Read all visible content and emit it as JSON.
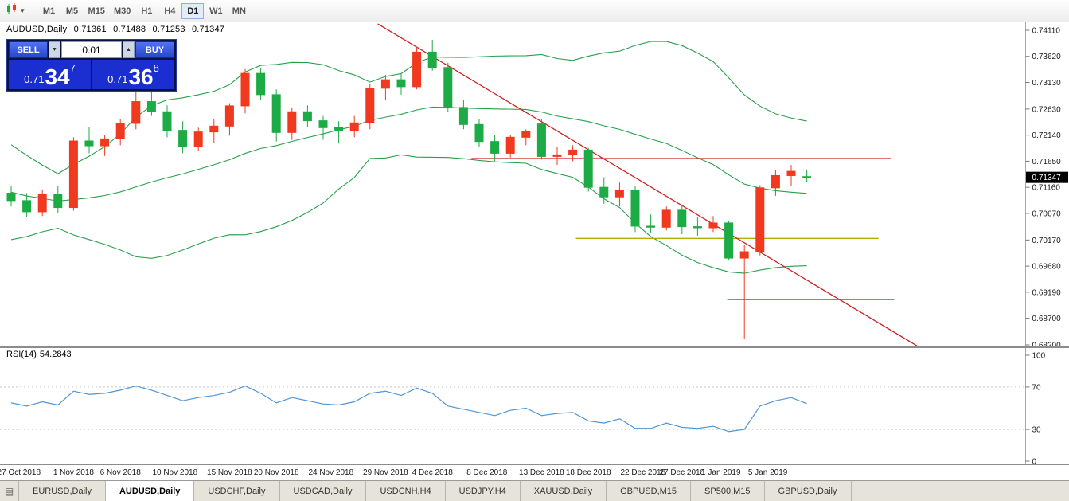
{
  "toolbar": {
    "timeframes": [
      {
        "label": "M1",
        "active": false
      },
      {
        "label": "M5",
        "active": false
      },
      {
        "label": "M15",
        "active": false
      },
      {
        "label": "M30",
        "active": false
      },
      {
        "label": "H1",
        "active": false
      },
      {
        "label": "H4",
        "active": false
      },
      {
        "label": "D1",
        "active": true
      },
      {
        "label": "W1",
        "active": false
      },
      {
        "label": "MN",
        "active": false
      }
    ]
  },
  "chart_header": {
    "symbol": "AUDUSD,Daily",
    "open": "0.71361",
    "high": "0.71488",
    "low": "0.71253",
    "close": "0.71347"
  },
  "trade_panel": {
    "sell_label": "SELL",
    "buy_label": "BUY",
    "volume": "0.01",
    "sell": {
      "prefix": "0.71",
      "big": "34",
      "sup": "7"
    },
    "buy": {
      "prefix": "0.71",
      "big": "36",
      "sup": "8"
    }
  },
  "rsi": {
    "label": "RSI(14)",
    "value": "54.2843",
    "levels": [
      "100",
      "70",
      "30",
      "0"
    ]
  },
  "tabs": {
    "items": [
      {
        "label": "EURUSD,Daily",
        "active": false
      },
      {
        "label": "AUDUSD,Daily",
        "active": true
      },
      {
        "label": "USDCHF,Daily",
        "active": false
      },
      {
        "label": "USDCAD,Daily",
        "active": false
      },
      {
        "label": "USDCNH,H4",
        "active": false
      },
      {
        "label": "USDJPY,H4",
        "active": false
      },
      {
        "label": "XAUUSD,Daily",
        "active": false
      },
      {
        "label": "GBPUSD,M15",
        "active": false
      },
      {
        "label": "SP500,M15",
        "active": false
      },
      {
        "label": "GBPUSD,Daily",
        "active": false
      }
    ]
  },
  "icons": {
    "dropdown": "▾",
    "spin_up": "▲",
    "spin_down": "▼",
    "tabs_list": "▤"
  },
  "colors": {
    "bull_candle": "#f0391e",
    "bear_candle": "#1cab45",
    "bollinger": "#27a04a",
    "rsi_line": "#4f94d4",
    "trend_red": "#cc2222",
    "hline_red": "#cc2222",
    "hline_olive": "#b0b000",
    "hline_blue": "#1e90ff",
    "badge_bg": "#000000",
    "badge_text": "#ffffff"
  },
  "chart_data": {
    "type": "candlestick",
    "symbol": "AUDUSD",
    "timeframe": "Daily",
    "current_price": "0.71347",
    "price_axis": {
      "max": 0.7411,
      "min": 0.682,
      "labels": [
        "0.74110",
        "0.73620",
        "0.73130",
        "0.72630",
        "0.72140",
        "0.71650",
        "0.71160",
        "0.70670",
        "0.70170",
        "0.69680",
        "0.69190",
        "0.68700",
        "0.68200"
      ]
    },
    "candles": [
      [
        "26 Oct",
        0.7105,
        0.7118,
        0.708,
        0.7091
      ],
      [
        "29 Oct",
        0.7091,
        0.7105,
        0.706,
        0.707
      ],
      [
        "30 Oct",
        0.707,
        0.7112,
        0.7062,
        0.7103
      ],
      [
        "31 Oct",
        0.7103,
        0.7118,
        0.7068,
        0.7078
      ],
      [
        "1 Nov",
        0.7078,
        0.721,
        0.7072,
        0.7203
      ],
      [
        "2 Nov",
        0.7203,
        0.723,
        0.718,
        0.7194
      ],
      [
        "5 Nov",
        0.7194,
        0.7215,
        0.7175,
        0.7207
      ],
      [
        "6 Nov",
        0.7207,
        0.7245,
        0.7195,
        0.7236
      ],
      [
        "7 Nov",
        0.7236,
        0.7295,
        0.7225,
        0.7277
      ],
      [
        "8 Nov",
        0.7277,
        0.7303,
        0.725,
        0.7258
      ],
      [
        "9 Nov",
        0.7258,
        0.727,
        0.721,
        0.7223
      ],
      [
        "12 Nov",
        0.7223,
        0.724,
        0.718,
        0.7193
      ],
      [
        "13 Nov",
        0.7193,
        0.7228,
        0.7185,
        0.722
      ],
      [
        "14 Nov",
        0.722,
        0.7245,
        0.72,
        0.7231
      ],
      [
        "15 Nov",
        0.7231,
        0.7274,
        0.7213,
        0.7269
      ],
      [
        "16 Nov",
        0.7269,
        0.7338,
        0.7255,
        0.733
      ],
      [
        "19 Nov",
        0.733,
        0.734,
        0.728,
        0.729
      ],
      [
        "20 Nov",
        0.729,
        0.73,
        0.7202,
        0.7219
      ],
      [
        "21 Nov",
        0.7219,
        0.7266,
        0.7205,
        0.7258
      ],
      [
        "22 Nov",
        0.7258,
        0.727,
        0.723,
        0.7241
      ],
      [
        "23 Nov",
        0.7241,
        0.725,
        0.7205,
        0.7228
      ],
      [
        "26 Nov",
        0.7228,
        0.724,
        0.7198,
        0.7223
      ],
      [
        "27 Nov",
        0.7223,
        0.725,
        0.721,
        0.7237
      ],
      [
        "28 Nov",
        0.7237,
        0.731,
        0.7225,
        0.7302
      ],
      [
        "29 Nov",
        0.7302,
        0.7327,
        0.728,
        0.7318
      ],
      [
        "30 Nov",
        0.7318,
        0.733,
        0.729,
        0.7305
      ],
      [
        "3 Dec",
        0.7305,
        0.738,
        0.73,
        0.737
      ],
      [
        "4 Dec",
        0.737,
        0.7393,
        0.7335,
        0.7341
      ],
      [
        "5 Dec",
        0.7341,
        0.735,
        0.7258,
        0.7266
      ],
      [
        "6 Dec",
        0.7266,
        0.728,
        0.7225,
        0.7234
      ],
      [
        "7 Dec",
        0.7234,
        0.7245,
        0.7192,
        0.7202
      ],
      [
        "10 Dec",
        0.7202,
        0.7215,
        0.7165,
        0.718
      ],
      [
        "11 Dec",
        0.718,
        0.7215,
        0.7172,
        0.721
      ],
      [
        "12 Dec",
        0.721,
        0.7225,
        0.7195,
        0.7221
      ],
      [
        "13 Dec",
        0.7235,
        0.7245,
        0.7168,
        0.7174
      ],
      [
        "14 Dec",
        0.7174,
        0.7192,
        0.7158,
        0.7177
      ],
      [
        "17 Dec",
        0.7177,
        0.7195,
        0.7165,
        0.7186
      ],
      [
        "18 Dec",
        0.7186,
        0.719,
        0.7108,
        0.7116
      ],
      [
        "19 Dec",
        0.7116,
        0.7135,
        0.7085,
        0.7098
      ],
      [
        "20 Dec",
        0.7098,
        0.7125,
        0.708,
        0.711
      ],
      [
        "21 Dec",
        0.711,
        0.7118,
        0.7032,
        0.7043
      ],
      [
        "24 Dec",
        0.7043,
        0.7065,
        0.703,
        0.7041
      ],
      [
        "26 Dec",
        0.7041,
        0.708,
        0.7035,
        0.7073
      ],
      [
        "27 Dec",
        0.7073,
        0.7082,
        0.7028,
        0.7042
      ],
      [
        "28 Dec",
        0.7042,
        0.706,
        0.7025,
        0.704
      ],
      [
        "31 Dec",
        0.704,
        0.7062,
        0.7032,
        0.7049
      ],
      [
        "2 Jan",
        0.7049,
        0.7052,
        0.698,
        0.6983
      ],
      [
        "3 Jan",
        0.6983,
        0.7008,
        0.6832,
        0.6995
      ],
      [
        "4 Jan",
        0.6995,
        0.712,
        0.6988,
        0.7115
      ],
      [
        "7 Jan",
        0.7115,
        0.7148,
        0.71,
        0.7138
      ],
      [
        "8 Jan",
        0.7138,
        0.7158,
        0.7118,
        0.7146
      ],
      [
        "9 Jan",
        0.71361,
        0.71488,
        0.71253,
        0.71347
      ]
    ],
    "pre_closes": [
      0.723,
      0.7212,
      0.7195,
      0.7175,
      0.715,
      0.713,
      0.7118,
      0.71,
      0.7088,
      0.7075,
      0.7062,
      0.705,
      0.7048,
      0.706,
      0.7078,
      0.7092,
      0.7105,
      0.7112,
      0.71,
      0.7095
    ],
    "indicators": {
      "bollinger": {
        "period": 20,
        "deviation": 2
      },
      "rsi": {
        "period": 14,
        "current": 54.2843,
        "values": [
          55,
          52,
          56,
          53,
          66,
          63,
          64,
          67,
          71,
          67,
          62,
          57,
          60,
          62,
          65,
          71,
          64,
          55,
          60,
          57,
          54,
          53,
          56,
          64,
          66,
          62,
          69,
          64,
          52,
          49,
          46,
          43,
          48,
          50,
          43,
          45,
          46,
          38,
          36,
          40,
          31,
          31,
          36,
          32,
          31,
          33,
          28,
          30,
          52,
          57,
          60,
          54.28
        ]
      }
    },
    "objects": {
      "trendline": {
        "i1": 23.5,
        "p1": 0.7423,
        "i2": 58.3,
        "p2": 0.6814,
        "color": "#cc2222"
      },
      "hlines": [
        {
          "name": "resistance-red",
          "price": 0.717,
          "i1": 29.5,
          "i2": 56.4,
          "color": "#cc2222"
        },
        {
          "name": "support-olive",
          "price": 0.702,
          "i1": 36.2,
          "i2": 55.6,
          "color": "#b0b000"
        },
        {
          "name": "support-blue",
          "price": 0.6905,
          "i1": 45.9,
          "i2": 56.6,
          "color": "#1e90ff"
        }
      ]
    },
    "time_axis": [
      {
        "label": "27 Oct 2018",
        "index": 0.5
      },
      {
        "label": "1 Nov 2018",
        "index": 4
      },
      {
        "label": "6 Nov 2018",
        "index": 7
      },
      {
        "label": "10 Nov 2018",
        "index": 10.5
      },
      {
        "label": "15 Nov 2018",
        "index": 14
      },
      {
        "label": "20 Nov 2018",
        "index": 17
      },
      {
        "label": "24 Nov 2018",
        "index": 20.5
      },
      {
        "label": "29 Nov 2018",
        "index": 24
      },
      {
        "label": "4 Dec 2018",
        "index": 27
      },
      {
        "label": "8 Dec 2018",
        "index": 30.5
      },
      {
        "label": "13 Dec 2018",
        "index": 34
      },
      {
        "label": "18 Dec 2018",
        "index": 37
      },
      {
        "label": "22 Dec 2018",
        "index": 40.5
      },
      {
        "label": "27 Dec 2018",
        "index": 43
      },
      {
        "label": "1 Jan 2019",
        "index": 45.5
      },
      {
        "label": "5 Jan 2019",
        "index": 48.5
      }
    ]
  }
}
